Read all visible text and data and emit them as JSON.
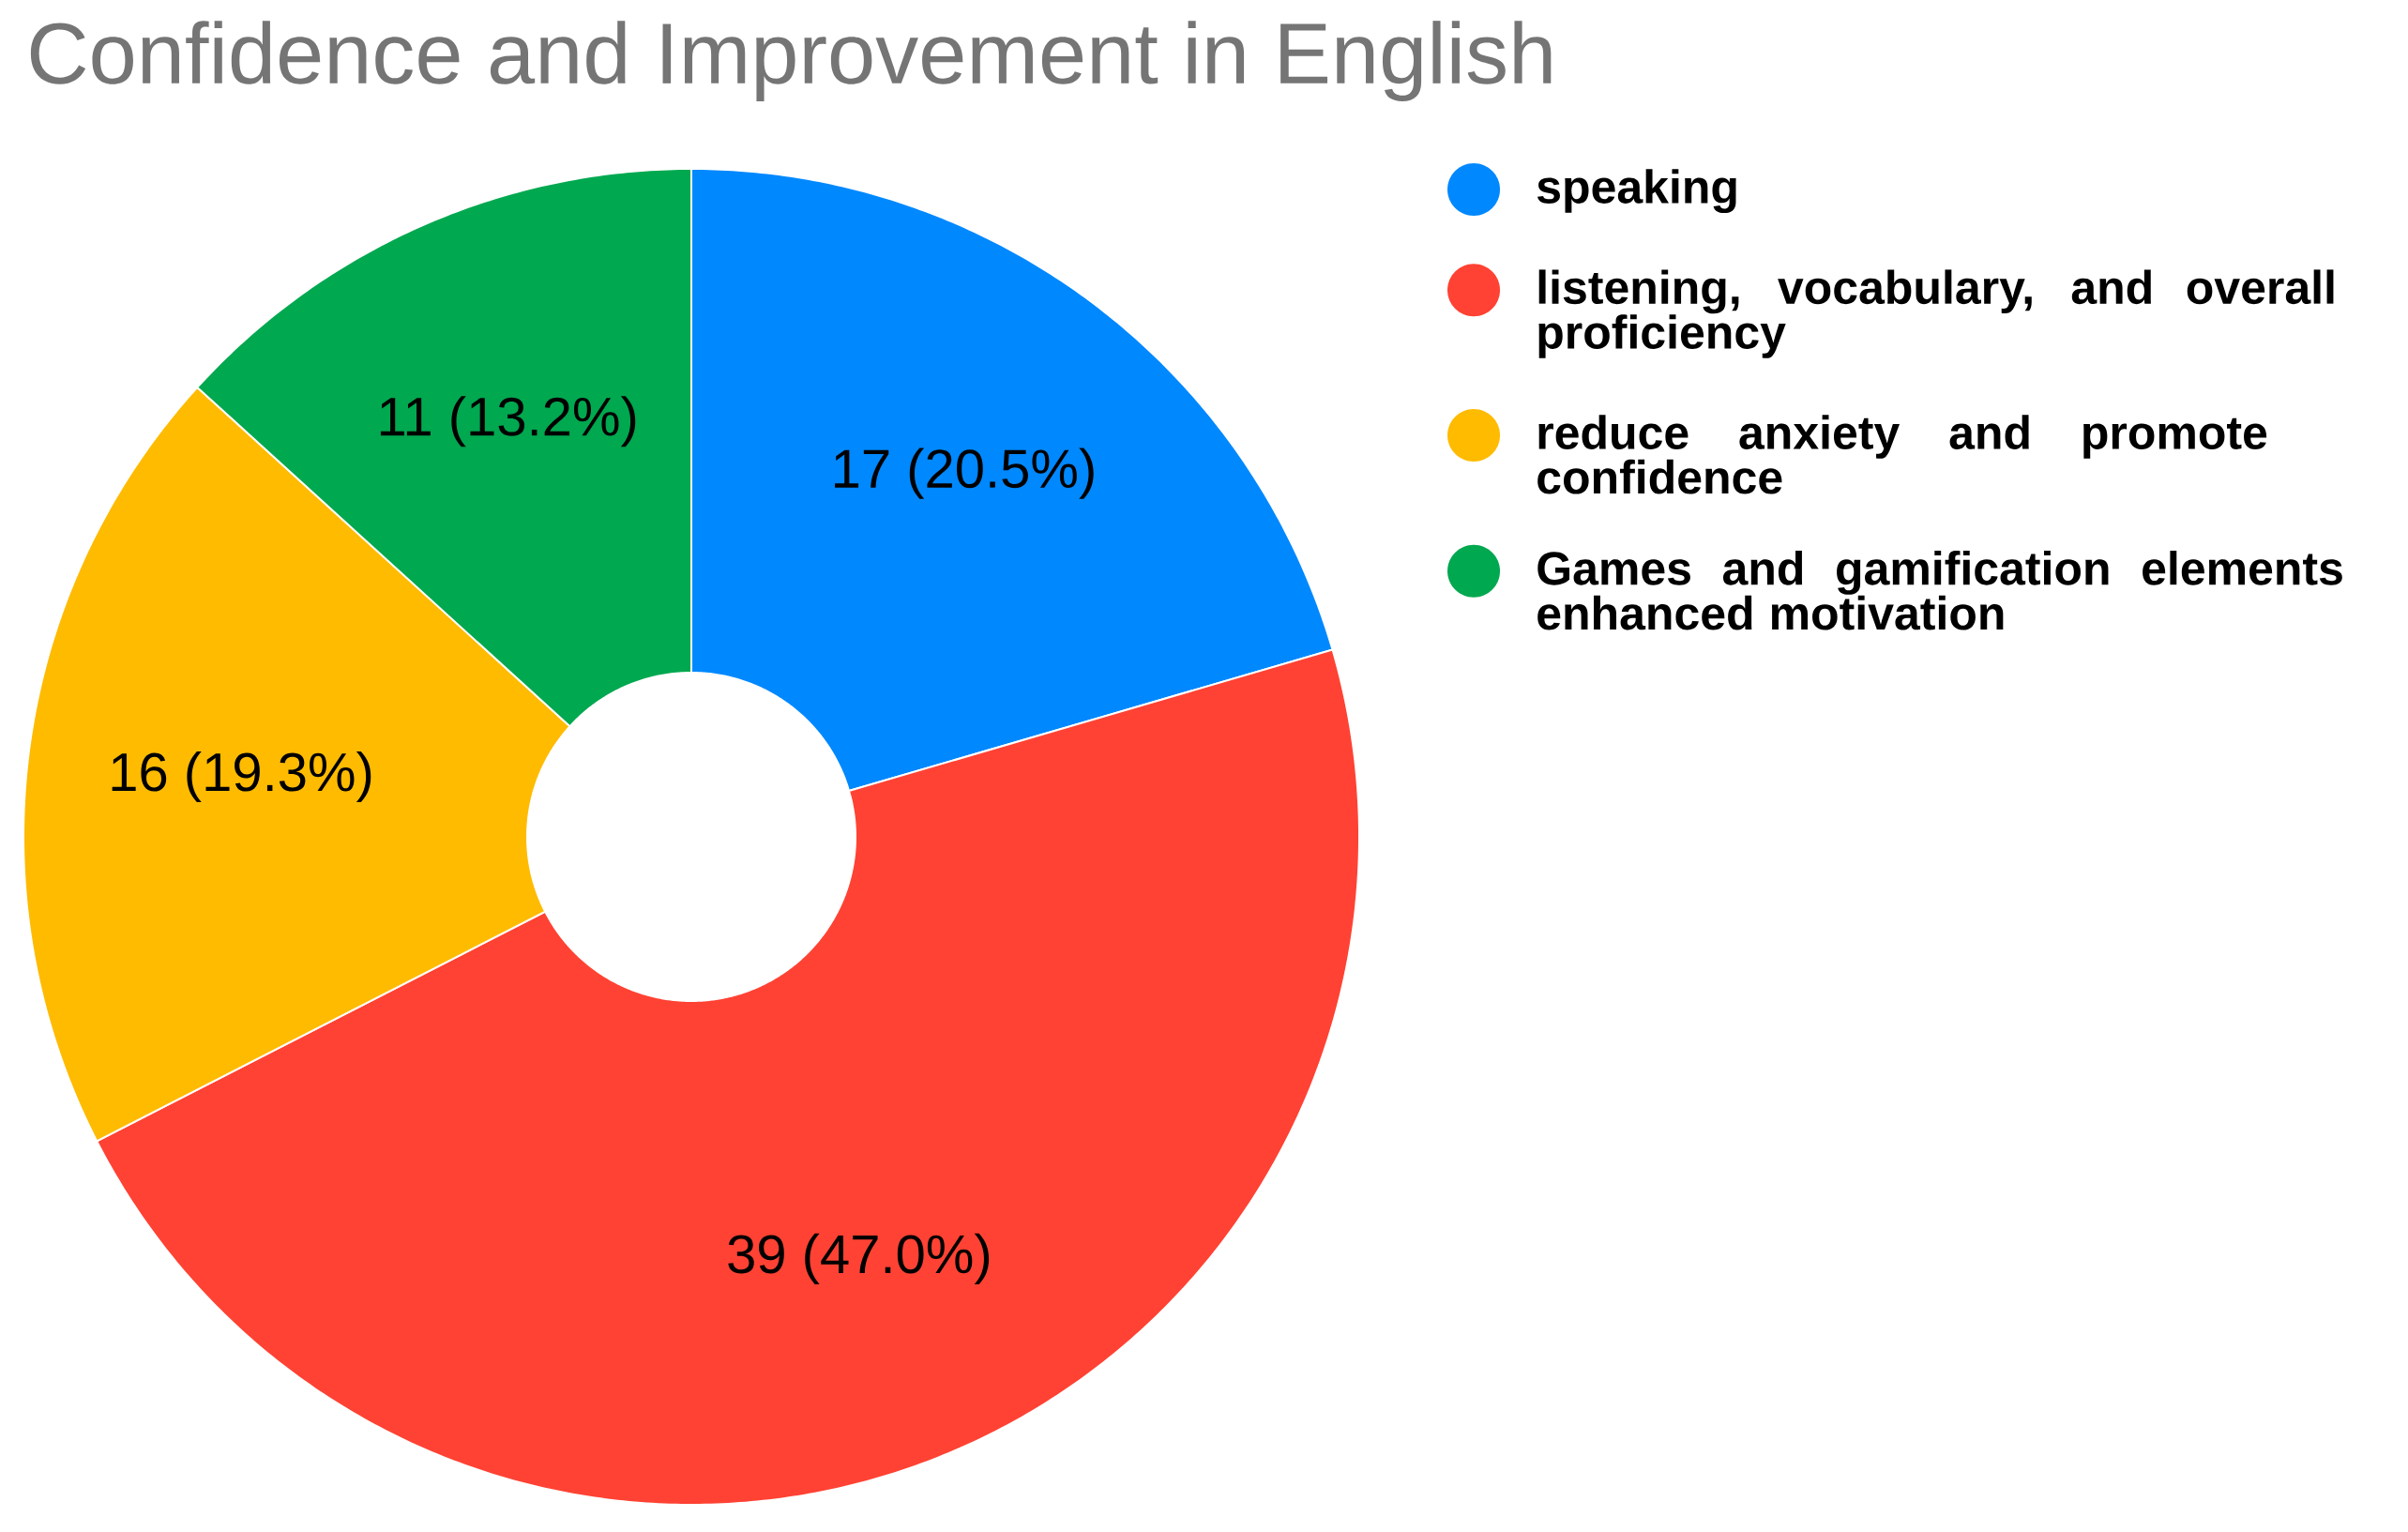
{
  "chart_data": {
    "type": "donut",
    "title": "Confidence and Improvement in English",
    "categories": [
      "speaking",
      "listening, vocabulary, and overall proficiency",
      "reduce anxiety and promote confidence",
      "Games and gamification elements enhanced motivation"
    ],
    "values": [
      17,
      39,
      16,
      11
    ],
    "colors": [
      "#0088ff",
      "#ff4233",
      "#ffbb00",
      "#00a84f"
    ],
    "value_labels": [
      "17 (20.5%)",
      "39 (47.0%)",
      "16 (19.3%)",
      "11 (13.2%)"
    ],
    "legend": "right"
  }
}
